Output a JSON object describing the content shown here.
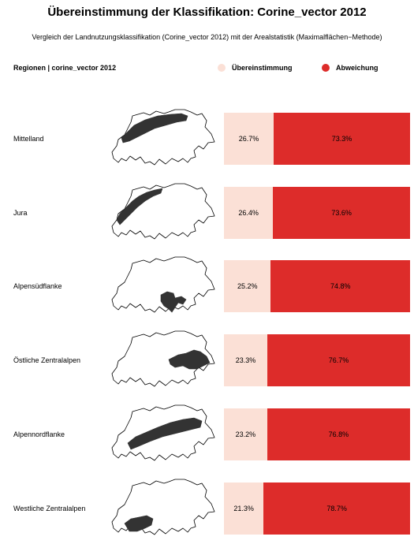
{
  "title": "Übereinstimmung der Klassifikation: Corine_vector 2012",
  "subtitle": "Vergleich der Landnutzungsklassifikation (Corine_vector 2012) mit der Arealstatistik (Maximalflächen−Methode)",
  "header_left": "Regionen | corine_vector 2012",
  "colors": {
    "match": "#fbe0d6",
    "deviation": "#dd2c2a",
    "map_fill": "#333333",
    "map_outline": "#000000"
  },
  "chart_data": {
    "type": "bar",
    "orientation": "horizontal-stacked-100",
    "categories": [
      "Mittelland",
      "Jura",
      "Alpensüdflanke",
      "Östliche Zentralalpen",
      "Alpennordflanke",
      "Westliche Zentralalpen"
    ],
    "series": [
      {
        "name": "Übereinstimmung",
        "values": [
          26.7,
          26.4,
          25.2,
          23.3,
          23.2,
          21.3
        ],
        "labels": [
          "26.7%",
          "26.4%",
          "25.2%",
          "23.3%",
          "23.2%",
          "21.3%"
        ]
      },
      {
        "name": "Abweichung",
        "values": [
          73.3,
          73.6,
          74.8,
          76.7,
          76.8,
          78.7
        ],
        "labels": [
          "73.3%",
          "73.6%",
          "74.8%",
          "76.7%",
          "76.8%",
          "78.7%"
        ]
      }
    ],
    "legend_position": "top-right",
    "grid": false
  }
}
